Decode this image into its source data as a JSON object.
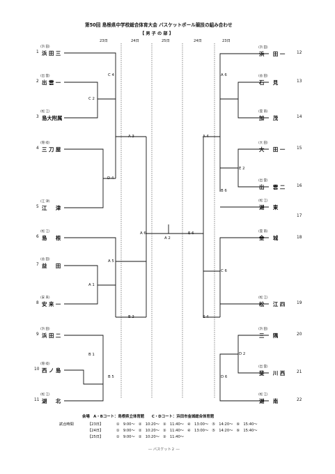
{
  "header": {
    "title": "第50回 島根県中学校総合体育大会 バスケットボール競技の組み合わせ",
    "subtitle": "【 男 子 の 部 】"
  },
  "day_labels": [
    "23日",
    "24日",
    "25日",
    "24日",
    "23日"
  ],
  "left_teams": [
    {
      "seed": "1",
      "region": "(浜 田)",
      "name": "浜 田 三"
    },
    {
      "seed": "2",
      "region": "(出 雲)",
      "name": "出 雲 一"
    },
    {
      "seed": "3",
      "region": "(松 江)",
      "name": "島大附属"
    },
    {
      "seed": "4",
      "region": "(隠 岐)",
      "name": "三 刀 屋"
    },
    {
      "seed": "5",
      "region": "(江 津)",
      "name": "江 　 津"
    },
    {
      "seed": "6",
      "region": "(松 江)",
      "name": "島 　 根"
    },
    {
      "seed": "7",
      "region": "(益 田)",
      "name": "益 　 田"
    },
    {
      "seed": "8",
      "region": "(安 来)",
      "name": "安 来 一"
    },
    {
      "seed": "9",
      "region": "(浜 田)",
      "name": "浜 田 二"
    },
    {
      "seed": "10",
      "region": "(隠 岐)",
      "name": "西 ノ 島"
    },
    {
      "seed": "11",
      "region": "(松 江)",
      "name": "湖 　 北"
    }
  ],
  "right_teams": [
    {
      "seed": "12",
      "region": "(浜 田)",
      "name": "浜 　 田 一"
    },
    {
      "seed": "13",
      "region": "(益 田)",
      "name": "石 　 見"
    },
    {
      "seed": "14",
      "region": "(雲 南)",
      "name": "加 　 茂"
    },
    {
      "seed": "15",
      "region": "(大 田)",
      "name": "大 　 田 一"
    },
    {
      "seed": "16",
      "region": "(出 雲)",
      "name": "出 　 雲 二"
    },
    {
      "seed": "17",
      "region": "(松 江)",
      "name": "湖 　 東"
    },
    {
      "seed": "18",
      "region": "(雲 南)",
      "name": "金 　 城"
    },
    {
      "seed": "19",
      "region": "(松 江)",
      "name": "松 　 江 四"
    },
    {
      "seed": "20",
      "region": "(浜 田)",
      "name": "三 　 隅"
    },
    {
      "seed": "21",
      "region": "(出 雲)",
      "name": "斐 　 川 西"
    },
    {
      "seed": "22",
      "region": "(松 江)",
      "name": "湖 　 南"
    }
  ],
  "match_labels": [
    "C 4",
    "C 2",
    "A 3",
    "D 4",
    "A 6",
    "A 5",
    "A 1",
    "B 3",
    "B 1",
    "B 5",
    "A 2",
    "A 6",
    "A 4",
    "E 2",
    "E 6",
    "B 6",
    "C 6",
    "E 4",
    "D 2",
    "D 6"
  ],
  "footer": {
    "venue": "会場　A・Bコート：島根県立体育館　　C・Dコート：浜田市金城総合体育館",
    "schedule_label": "試合時間",
    "rows": [
      {
        "day": "【23日】",
        "times": "①　9:00～　②　10:20～　③　11:40～　④　13:00～　⑤　14:20～　⑥　15:40～"
      },
      {
        "day": "【24日】",
        "times": "①　9:00～　②　10:20～　③　11:40～　④　13:00～　⑤　14:20～　⑥　15:40～"
      },
      {
        "day": "【25日】",
        "times": "①　9:00～　②　10:20～　③　11:40～"
      }
    ],
    "page": "― バスケット２ ―"
  }
}
